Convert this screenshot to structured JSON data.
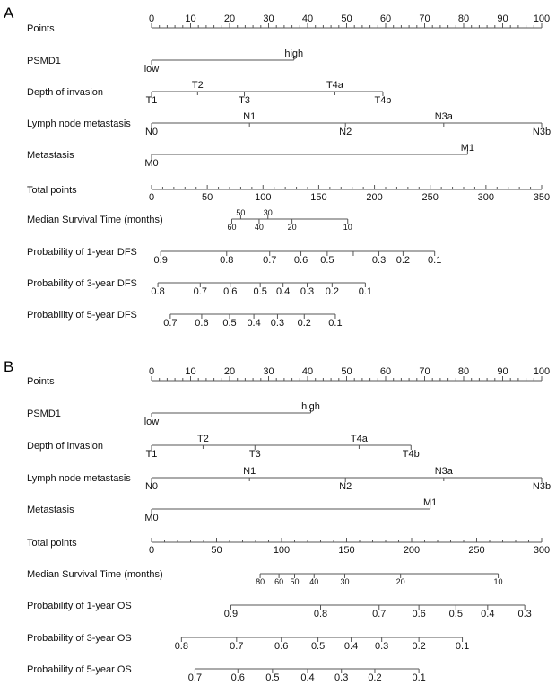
{
  "chart_data": [
    {
      "type": "nomogram",
      "panel": "A",
      "points_range": [
        0,
        100
      ],
      "total_points_range": [
        0,
        350
      ],
      "rows": [
        {
          "label": "Points",
          "kind": "points",
          "ticks": [
            0,
            10,
            20,
            30,
            40,
            50,
            60,
            70,
            80,
            90,
            100
          ]
        },
        {
          "label": "PSMD1",
          "kind": "variable",
          "levels": [
            {
              "label": "low",
              "points": 0,
              "side": "below"
            },
            {
              "label": "high",
              "points": 36.5,
              "side": "above"
            }
          ]
        },
        {
          "label": "Depth of invasion",
          "kind": "variable",
          "levels": [
            {
              "label": "T1",
              "points": 0,
              "side": "below"
            },
            {
              "label": "T2",
              "points": 11.8,
              "side": "above"
            },
            {
              "label": "T3",
              "points": 23.8,
              "side": "below"
            },
            {
              "label": "T4a",
              "points": 47,
              "side": "above"
            },
            {
              "label": "T4b",
              "points": 59.3,
              "side": "below"
            }
          ]
        },
        {
          "label": "Lymph node metastasis",
          "kind": "variable",
          "levels": [
            {
              "label": "N0",
              "points": 0,
              "side": "below"
            },
            {
              "label": "N1",
              "points": 25.1,
              "side": "above"
            },
            {
              "label": "N2",
              "points": 49.7,
              "side": "below"
            },
            {
              "label": "N3a",
              "points": 74.9,
              "side": "above"
            },
            {
              "label": "N3b",
              "points": 100,
              "side": "below"
            }
          ]
        },
        {
          "label": "Metastasis",
          "kind": "variable",
          "levels": [
            {
              "label": "M0",
              "points": 0,
              "side": "below"
            },
            {
              "label": "M1",
              "points": 81,
              "side": "above"
            }
          ]
        },
        {
          "label": "Total points",
          "kind": "total",
          "ticks": [
            0,
            50,
            100,
            150,
            200,
            250,
            300,
            350
          ]
        },
        {
          "label": "Median Survival Time (months)",
          "kind": "outcome",
          "small": true,
          "levels": [
            {
              "label": "60",
              "total": 72,
              "side": "below"
            },
            {
              "label": "50",
              "total": 80,
              "side": "above"
            },
            {
              "label": "40",
              "total": 96.5,
              "side": "below"
            },
            {
              "label": "30",
              "total": 104.4,
              "side": "above"
            },
            {
              "label": "20",
              "total": 126,
              "side": "below"
            },
            {
              "label": "10",
              "total": 176,
              "side": "below"
            }
          ]
        },
        {
          "label": "Probability of 1-year DFS",
          "kind": "outcome",
          "levels": [
            {
              "label": "0.9",
              "total": 8.2,
              "side": "below"
            },
            {
              "label": "0.8",
              "total": 67.4,
              "side": "below"
            },
            {
              "label": "0.7",
              "total": 106,
              "side": "below"
            },
            {
              "label": "0.6",
              "total": 134,
              "side": "below"
            },
            {
              "label": "0.5",
              "total": 157.6,
              "side": "below"
            },
            {
              "label": "",
              "total": 181,
              "side": "below"
            },
            {
              "label": "0.3",
              "total": 204,
              "side": "below"
            },
            {
              "label": "0.2",
              "total": 225.6,
              "side": "below"
            },
            {
              "label": "0.1",
              "total": 254,
              "side": "below"
            }
          ]
        },
        {
          "label": "Probability of 3-year DFS",
          "kind": "outcome",
          "levels": [
            {
              "label": "0.8",
              "total": 5.7,
              "side": "below"
            },
            {
              "label": "0.7",
              "total": 43.7,
              "side": "below"
            },
            {
              "label": "0.6",
              "total": 70.6,
              "side": "below"
            },
            {
              "label": "0.5",
              "total": 97.5,
              "side": "below"
            },
            {
              "label": "0.4",
              "total": 118,
              "side": "below"
            },
            {
              "label": "0.3",
              "total": 139.6,
              "side": "below"
            },
            {
              "label": "0.2",
              "total": 162,
              "side": "below"
            },
            {
              "label": "0.1",
              "total": 191.8,
              "side": "below"
            }
          ]
        },
        {
          "label": "Probability of 5-year DFS",
          "kind": "outcome",
          "levels": [
            {
              "label": "0.7",
              "total": 16.8,
              "side": "below"
            },
            {
              "label": "0.6",
              "total": 45,
              "side": "below"
            },
            {
              "label": "0.5",
              "total": 70,
              "side": "below"
            },
            {
              "label": "0.4",
              "total": 91.8,
              "side": "below"
            },
            {
              "label": "0.3",
              "total": 113,
              "side": "below"
            },
            {
              "label": "0.2",
              "total": 137,
              "side": "below"
            },
            {
              "label": "0.1",
              "total": 164.9,
              "side": "below"
            }
          ]
        }
      ]
    },
    {
      "type": "nomogram",
      "panel": "B",
      "points_range": [
        0,
        100
      ],
      "total_points_range": [
        0,
        300
      ],
      "rows": [
        {
          "label": "Points",
          "kind": "points",
          "ticks": [
            0,
            10,
            20,
            30,
            40,
            50,
            60,
            70,
            80,
            90,
            100
          ]
        },
        {
          "label": "PSMD1",
          "kind": "variable",
          "levels": [
            {
              "label": "low",
              "points": 0,
              "side": "below"
            },
            {
              "label": "high",
              "points": 40.8,
              "side": "above"
            }
          ]
        },
        {
          "label": "Depth of invasion",
          "kind": "variable",
          "levels": [
            {
              "label": "T1",
              "points": 0,
              "side": "below"
            },
            {
              "label": "T2",
              "points": 13.2,
              "side": "above"
            },
            {
              "label": "T3",
              "points": 26.5,
              "side": "below"
            },
            {
              "label": "T4a",
              "points": 53.2,
              "side": "above"
            },
            {
              "label": "T4b",
              "points": 66.5,
              "side": "below"
            }
          ]
        },
        {
          "label": "Lymph node metastasis",
          "kind": "variable",
          "levels": [
            {
              "label": "N0",
              "points": 0,
              "side": "below"
            },
            {
              "label": "N1",
              "points": 25.1,
              "side": "above"
            },
            {
              "label": "N2",
              "points": 49.7,
              "side": "below"
            },
            {
              "label": "N3a",
              "points": 74.9,
              "side": "above"
            },
            {
              "label": "N3b",
              "points": 100,
              "side": "below"
            }
          ]
        },
        {
          "label": "Metastasis",
          "kind": "variable",
          "levels": [
            {
              "label": "M0",
              "points": 0,
              "side": "below"
            },
            {
              "label": "M1",
              "points": 71.4,
              "side": "above"
            }
          ]
        },
        {
          "label": "Total points",
          "kind": "total",
          "ticks": [
            0,
            50,
            100,
            150,
            200,
            250,
            300
          ]
        },
        {
          "label": "Median Survival Time (months)",
          "kind": "outcome",
          "small": true,
          "levels": [
            {
              "label": "80",
              "total": 83.5,
              "side": "below"
            },
            {
              "label": "60",
              "total": 98,
              "side": "below"
            },
            {
              "label": "50",
              "total": 110,
              "side": "below"
            },
            {
              "label": "40",
              "total": 125,
              "side": "below"
            },
            {
              "label": "30",
              "total": 148.6,
              "side": "below"
            },
            {
              "label": "20",
              "total": 191.5,
              "side": "below"
            },
            {
              "label": "10",
              "total": 266.6,
              "side": "below"
            }
          ]
        },
        {
          "label": "Probability of 1-year OS",
          "kind": "outcome",
          "levels": [
            {
              "label": "0.9",
              "total": 61,
              "side": "below"
            },
            {
              "label": "0.8",
              "total": 130,
              "side": "below"
            },
            {
              "label": "0.7",
              "total": 175,
              "side": "below"
            },
            {
              "label": "0.6",
              "total": 205.6,
              "side": "below"
            },
            {
              "label": "0.5",
              "total": 234,
              "side": "below"
            },
            {
              "label": "0.4",
              "total": 258.5,
              "side": "below"
            },
            {
              "label": "0.3",
              "total": 287,
              "side": "below"
            }
          ]
        },
        {
          "label": "Probability of 3-year OS",
          "kind": "outcome",
          "levels": [
            {
              "label": "0.8",
              "total": 23,
              "side": "below"
            },
            {
              "label": "0.7",
              "total": 65.4,
              "side": "below"
            },
            {
              "label": "0.6",
              "total": 99.8,
              "side": "below"
            },
            {
              "label": "0.5",
              "total": 128,
              "side": "below"
            },
            {
              "label": "0.4",
              "total": 153.5,
              "side": "below"
            },
            {
              "label": "0.3",
              "total": 177,
              "side": "below"
            },
            {
              "label": "0.2",
              "total": 205.6,
              "side": "below"
            },
            {
              "label": "0.1",
              "total": 239,
              "side": "below"
            }
          ]
        },
        {
          "label": "Probability of 5-year OS",
          "kind": "outcome",
          "levels": [
            {
              "label": "0.7",
              "total": 33.4,
              "side": "below"
            },
            {
              "label": "0.6",
              "total": 66.4,
              "side": "below"
            },
            {
              "label": "0.5",
              "total": 93,
              "side": "below"
            },
            {
              "label": "0.4",
              "total": 120,
              "side": "below"
            },
            {
              "label": "0.3",
              "total": 146,
              "side": "below"
            },
            {
              "label": "0.2",
              "total": 171.7,
              "side": "below"
            },
            {
              "label": "0.1",
              "total": 205.6,
              "side": "below"
            }
          ]
        }
      ]
    }
  ]
}
